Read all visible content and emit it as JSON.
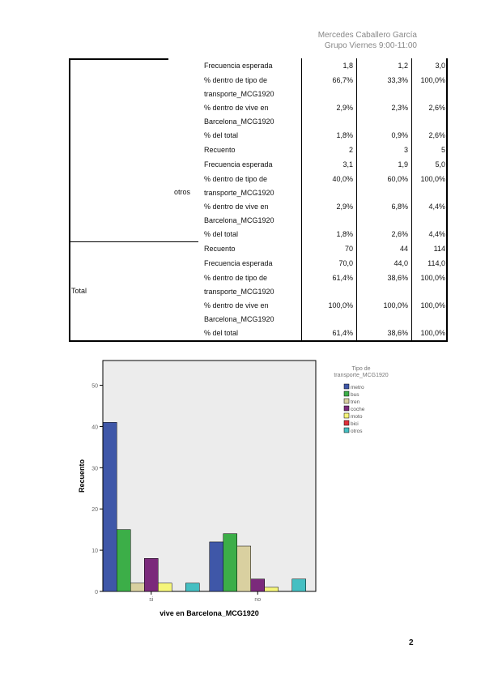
{
  "header": {
    "author": "Mercedes Caballero García",
    "group": "Grupo Viernes 9:00-11:00"
  },
  "table": {
    "sections": [
      {
        "rows": [
          {
            "stat": [
              "Frecuencia esperada"
            ],
            "values": [
              "1,8",
              "1,2",
              "3,0"
            ]
          },
          {
            "stat": [
              "% dentro de tipo de",
              "transporte_MCG1920"
            ],
            "values": [
              "66,7%",
              "33,3%",
              "100,0%"
            ]
          },
          {
            "stat": [
              "% dentro de vive en",
              "Barcelona_MCG1920"
            ],
            "values": [
              "2,9%",
              "2,3%",
              "2,6%"
            ]
          },
          {
            "stat": [
              "% del total"
            ],
            "values": [
              "1,8%",
              "0,9%",
              "2,6%"
            ]
          }
        ]
      },
      {
        "sublabel": "otros",
        "rows": [
          {
            "stat": [
              "Recuento"
            ],
            "values": [
              "2",
              "3",
              "5"
            ]
          },
          {
            "stat": [
              "Frecuencia esperada"
            ],
            "values": [
              "3,1",
              "1,9",
              "5,0"
            ]
          },
          {
            "stat": [
              "% dentro de tipo de",
              "transporte_MCG1920"
            ],
            "values": [
              "40,0%",
              "60,0%",
              "100,0%"
            ]
          },
          {
            "stat": [
              "% dentro de vive en",
              "Barcelona_MCG1920"
            ],
            "values": [
              "2,9%",
              "6,8%",
              "4,4%"
            ]
          },
          {
            "stat": [
              "% del total"
            ],
            "values": [
              "1,8%",
              "2,6%",
              "4,4%"
            ]
          }
        ]
      },
      {
        "label": "Total",
        "rows": [
          {
            "stat": [
              "Recuento"
            ],
            "values": [
              "70",
              "44",
              "114"
            ]
          },
          {
            "stat": [
              "Frecuencia esperada"
            ],
            "values": [
              "70,0",
              "44,0",
              "114,0"
            ]
          },
          {
            "stat": [
              "% dentro de tipo de",
              "transporte_MCG1920"
            ],
            "values": [
              "61,4%",
              "38,6%",
              "100,0%"
            ]
          },
          {
            "stat": [
              "% dentro de vive en",
              "Barcelona_MCG1920"
            ],
            "values": [
              "100,0%",
              "100,0%",
              "100,0%"
            ]
          },
          {
            "stat": [
              "% del total"
            ],
            "values": [
              "61,4%",
              "38,6%",
              "100,0%"
            ]
          }
        ]
      }
    ]
  },
  "chart_data": {
    "type": "bar",
    "ylabel": "Recuento",
    "xlabel": "vive en Barcelona_MCG1920",
    "legend_title": [
      "Tipo de",
      "transporte_MCG1920"
    ],
    "categories": [
      "si",
      "no"
    ],
    "series": [
      {
        "name": "metro",
        "color": "#3f57a8",
        "values": [
          41,
          12
        ]
      },
      {
        "name": "bus",
        "color": "#3cae48",
        "values": [
          15,
          14
        ]
      },
      {
        "name": "tren",
        "color": "#d9d0a0",
        "values": [
          2,
          11
        ]
      },
      {
        "name": "coche",
        "color": "#7b2a7b",
        "values": [
          8,
          3
        ]
      },
      {
        "name": "moto",
        "color": "#f5f57a",
        "values": [
          2,
          1
        ]
      },
      {
        "name": "bici",
        "color": "#e0303a",
        "values": [
          0,
          0
        ]
      },
      {
        "name": "otros",
        "color": "#45bfc2",
        "values": [
          2,
          3
        ]
      }
    ],
    "ylim": [
      0,
      56
    ],
    "yticks": [
      0,
      10,
      20,
      30,
      40,
      50
    ]
  },
  "page_number": "2"
}
